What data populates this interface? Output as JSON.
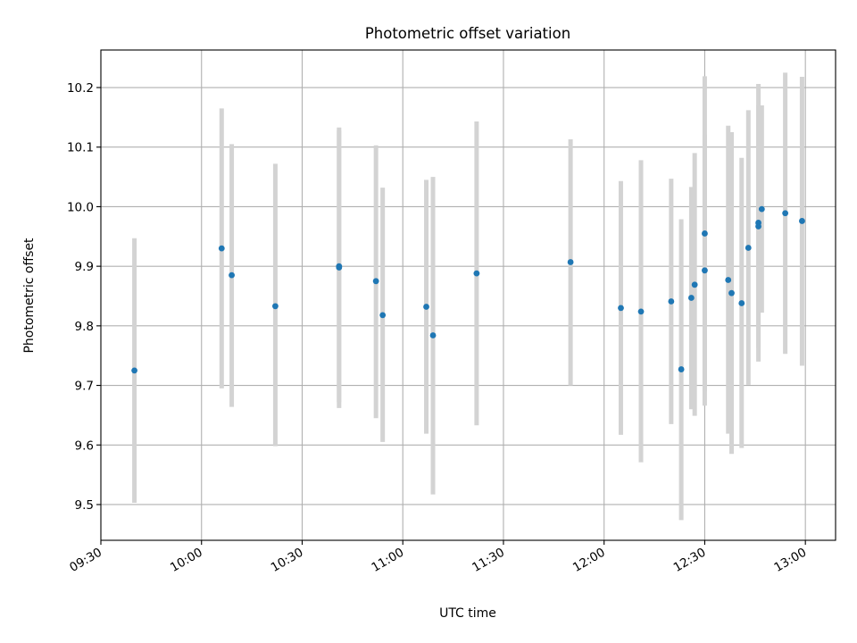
{
  "chart_data": {
    "type": "scatter",
    "title": "Photometric offset variation",
    "xlabel": "UTC time",
    "ylabel": "Photometric offset",
    "x_ticks": [
      "09:30",
      "10:00",
      "10:30",
      "11:00",
      "11:30",
      "12:00",
      "12:30",
      "13:00"
    ],
    "y_ticks": [
      "9.5",
      "9.6",
      "9.7",
      "9.8",
      "9.9",
      "10.0",
      "10.1",
      "10.2"
    ],
    "xlim": [
      "09:30",
      "13:09"
    ],
    "ylim": [
      9.44,
      10.263
    ],
    "grid": true,
    "point_color": "#1f77b4",
    "errorbar_color": "#d3d3d3",
    "points": [
      {
        "t": "09:40",
        "y": 9.725,
        "lo": 9.503,
        "hi": 9.947
      },
      {
        "t": "10:06",
        "y": 9.93,
        "lo": 9.695,
        "hi": 10.165
      },
      {
        "t": "10:09",
        "y": 9.885,
        "lo": 9.664,
        "hi": 10.105
      },
      {
        "t": "10:22",
        "y": 9.833,
        "lo": 9.598,
        "hi": 10.072
      },
      {
        "t": "10:41",
        "y": 9.898,
        "lo": 9.662,
        "hi": 10.133
      },
      {
        "t": "10:41",
        "y": 9.9,
        "lo": 9.672,
        "hi": 10.128
      },
      {
        "t": "10:52",
        "y": 9.875,
        "lo": 9.645,
        "hi": 10.103
      },
      {
        "t": "10:54",
        "y": 9.818,
        "lo": 9.605,
        "hi": 10.032
      },
      {
        "t": "11:07",
        "y": 9.832,
        "lo": 9.619,
        "hi": 10.045
      },
      {
        "t": "11:09",
        "y": 9.784,
        "lo": 9.517,
        "hi": 10.05
      },
      {
        "t": "11:22",
        "y": 9.888,
        "lo": 9.633,
        "hi": 10.143
      },
      {
        "t": "11:50",
        "y": 9.907,
        "lo": 9.7,
        "hi": 10.113
      },
      {
        "t": "12:05",
        "y": 9.83,
        "lo": 9.617,
        "hi": 10.043
      },
      {
        "t": "12:11",
        "y": 9.824,
        "lo": 9.571,
        "hi": 10.078
      },
      {
        "t": "12:20",
        "y": 9.841,
        "lo": 9.635,
        "hi": 10.047
      },
      {
        "t": "12:23",
        "y": 9.727,
        "lo": 9.474,
        "hi": 9.979
      },
      {
        "t": "12:26",
        "y": 9.847,
        "lo": 9.66,
        "hi": 10.033
      },
      {
        "t": "12:27",
        "y": 9.869,
        "lo": 9.649,
        "hi": 10.09
      },
      {
        "t": "12:30",
        "y": 9.893,
        "lo": 9.666,
        "hi": 10.121
      },
      {
        "t": "12:30",
        "y": 9.955,
        "lo": 9.69,
        "hi": 10.219
      },
      {
        "t": "12:37",
        "y": 9.877,
        "lo": 9.619,
        "hi": 10.136
      },
      {
        "t": "12:38",
        "y": 9.855,
        "lo": 9.585,
        "hi": 10.125
      },
      {
        "t": "12:41",
        "y": 9.838,
        "lo": 9.595,
        "hi": 10.082
      },
      {
        "t": "12:43",
        "y": 9.931,
        "lo": 9.701,
        "hi": 10.162
      },
      {
        "t": "12:46",
        "y": 9.973,
        "lo": 9.74,
        "hi": 10.206
      },
      {
        "t": "12:46",
        "y": 9.967,
        "lo": 9.763,
        "hi": 10.17
      },
      {
        "t": "12:47",
        "y": 9.996,
        "lo": 9.822,
        "hi": 10.17
      },
      {
        "t": "12:54",
        "y": 9.989,
        "lo": 9.753,
        "hi": 10.225
      },
      {
        "t": "12:59",
        "y": 9.976,
        "lo": 9.733,
        "hi": 10.218
      }
    ]
  }
}
